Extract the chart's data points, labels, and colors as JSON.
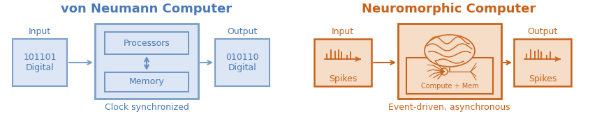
{
  "von_title": "von Neumann Computer",
  "von_title_color": "#4a7ab5",
  "von_subtitle": "Clock synchronized",
  "von_subtitle_color": "#4a7ab5",
  "von_edge_color": "#7a9fc8",
  "von_fill_color": "#dce6f4",
  "von_dark_edge": "#6a8fc0",
  "von_text_color": "#4a7ab5",
  "neuro_title": "Neuromorphic Computer",
  "neuro_title_color": "#c8621a",
  "neuro_subtitle": "Event-driven, asynchronous",
  "neuro_subtitle_color": "#c8621a",
  "neuro_edge_color": "#c8621a",
  "neuro_fill_color": "#f5ddc8",
  "neuro_text_color": "#c8621a",
  "bg": "#ffffff",
  "fig_w": 8.55,
  "fig_h": 2.0,
  "dpi": 100
}
